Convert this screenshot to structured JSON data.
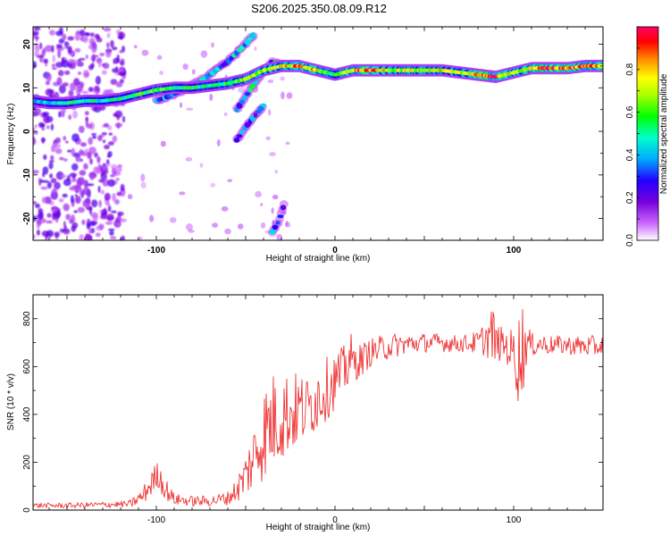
{
  "title": "S206.2025.350.08.09.R12",
  "chart_data": [
    {
      "type": "heatmap",
      "xlabel": "Height of straight line (km)",
      "ylabel": "Frequency (Hz)",
      "xlim": [
        -169,
        150
      ],
      "ylim": [
        -25,
        24
      ],
      "xticks": [
        -100,
        0,
        100
      ],
      "yticks": [
        -20,
        -10,
        0,
        10,
        20
      ],
      "colorbar": {
        "label": "Normalized spectral amplitude",
        "range": [
          0,
          1
        ],
        "ticks": [
          0.0,
          0.2,
          0.4,
          0.6,
          0.8
        ]
      },
      "main_trace": {
        "x": [
          -169,
          -160,
          -150,
          -140,
          -130,
          -120,
          -110,
          -100,
          -90,
          -80,
          -70,
          -60,
          -50,
          -40,
          -30,
          -20,
          -10,
          0,
          10,
          20,
          30,
          40,
          50,
          60,
          70,
          80,
          90,
          100,
          110,
          120,
          130,
          140,
          150
        ],
        "y": [
          7,
          6.5,
          6.5,
          7,
          7,
          7.5,
          8.5,
          9.5,
          10,
          10,
          10.5,
          11,
          12,
          14,
          15,
          15,
          14,
          13,
          14,
          14,
          14,
          14,
          14,
          14,
          13.5,
          13,
          12.5,
          13.5,
          14.5,
          14.5,
          14.5,
          15,
          15
        ],
        "amplitude": [
          0.45,
          0.45,
          0.5,
          0.55,
          0.5,
          0.55,
          0.6,
          0.65,
          0.6,
          0.55,
          0.55,
          0.6,
          0.7,
          0.75,
          0.8,
          0.9,
          0.8,
          0.55,
          0.85,
          0.95,
          0.7,
          0.75,
          0.8,
          0.75,
          0.7,
          0.95,
          0.95,
          0.7,
          0.85,
          0.95,
          0.95,
          0.9,
          0.95
        ]
      },
      "branch_traces": [
        {
          "x": [
            -100,
            -90,
            -80,
            -70,
            -60,
            -50,
            -45
          ],
          "y": [
            7,
            8.5,
            10.5,
            13,
            16,
            20,
            22.5
          ],
          "amplitude": 0.4
        },
        {
          "x": [
            -55,
            -50,
            -45,
            -40,
            -35,
            -30
          ],
          "y": [
            5,
            8,
            11,
            14,
            16,
            15
          ],
          "amplitude": 0.45
        },
        {
          "x": [
            -55,
            -50,
            -45,
            -40
          ],
          "y": [
            -2,
            1,
            3.5,
            6
          ],
          "amplitude": 0.35
        },
        {
          "x": [
            -35,
            -32,
            -30,
            -28
          ],
          "y": [
            -23,
            -21,
            -19,
            -16
          ],
          "amplitude": 0.35
        }
      ],
      "noise_regions": [
        {
          "x": [
            -169,
            -118
          ],
          "y": [
            -25,
            24
          ],
          "amplitude": 0.2
        }
      ]
    },
    {
      "type": "line",
      "xlabel": "Height of straight line (km)",
      "ylabel": "SNR (10 * v/v)",
      "xlim": [
        -169,
        150
      ],
      "ylim": [
        0,
        900
      ],
      "xticks": [
        -100,
        0,
        100
      ],
      "yticks": [
        0,
        200,
        400,
        600,
        800
      ],
      "series": [
        {
          "color": "#ee2222",
          "envelope": {
            "x": [
              -169,
              -150,
              -130,
              -115,
              -108,
              -102,
              -99,
              -95,
              -90,
              -80,
              -70,
              -60,
              -55,
              -50,
              -45,
              -40,
              -35,
              -30,
              -25,
              -20,
              -15,
              -10,
              -5,
              0,
              5,
              8,
              10,
              15,
              20,
              25,
              30,
              40,
              50,
              60,
              70,
              80,
              85,
              88,
              90,
              95,
              100,
              103,
              105,
              107,
              110,
              115,
              120,
              130,
              140,
              150
            ],
            "low": [
              8,
              8,
              10,
              10,
              20,
              60,
              90,
              40,
              20,
              15,
              15,
              20,
              30,
              50,
              80,
              120,
              160,
              200,
              230,
              260,
              290,
              330,
              370,
              420,
              470,
              500,
              530,
              560,
              600,
              610,
              630,
              650,
              660,
              660,
              660,
              650,
              640,
              600,
              620,
              620,
              560,
              420,
              460,
              600,
              640,
              650,
              650,
              650,
              640,
              640
            ],
            "high": [
              30,
              30,
              35,
              40,
              90,
              180,
              210,
              140,
              70,
              60,
              60,
              80,
              140,
              240,
              380,
              520,
              580,
              600,
              580,
              580,
              560,
              620,
              640,
              660,
              690,
              780,
              700,
              700,
              720,
              730,
              740,
              740,
              740,
              740,
              730,
              750,
              800,
              870,
              780,
              760,
              760,
              840,
              880,
              800,
              740,
              740,
              730,
              730,
              730,
              730
            ]
          }
        }
      ]
    }
  ]
}
